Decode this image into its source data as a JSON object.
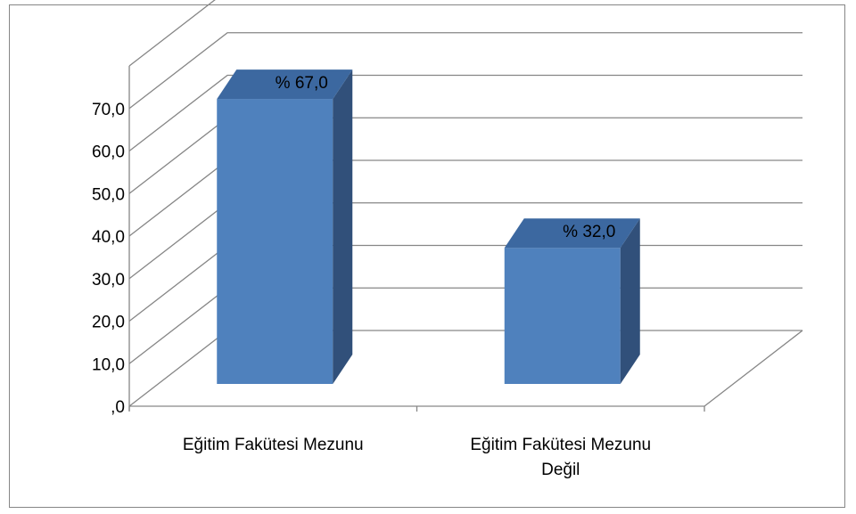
{
  "chart_data": {
    "type": "bar",
    "categories": [
      "Eğitim Fakütesi Mezunu",
      "Eğitim Fakütesi Mezunu Değil"
    ],
    "category_lines": [
      [
        "Eğitim Fakütesi Mezunu"
      ],
      [
        "Eğitim Fakütesi Mezunu",
        "Değil"
      ]
    ],
    "values": [
      67.0,
      32.0
    ],
    "data_labels": [
      "% 67,0",
      "% 32,0"
    ],
    "y_ticks": [
      ",0",
      "10,0",
      "20,0",
      "30,0",
      "40,0",
      "50,0",
      "60,0",
      "70,0"
    ],
    "ylim": [
      0,
      80
    ],
    "grid": true,
    "style": "3d-column",
    "colors": {
      "bar_front": "#4f81bd",
      "bar_side": "#31507a",
      "bar_top": "#3c68a0",
      "gridline": "#868686",
      "axis": "#868686"
    }
  }
}
